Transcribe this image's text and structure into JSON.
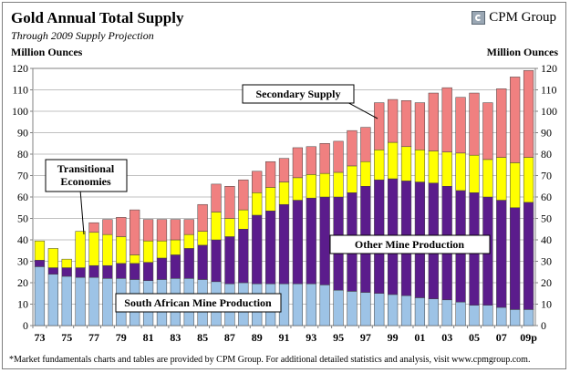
{
  "header": {
    "title": "Gold Annual Total Supply",
    "subtitle": "Through 2009 Supply Projection",
    "brand": "CPM Group",
    "unit_left": "Million Ounces",
    "unit_right": "Million Ounces"
  },
  "footnote": "*Market fundamentals charts and tables are provided by CPM Group. For additional detailed statistics and analysis, visit www.cpmgroup.com.",
  "colors": {
    "south_african": "#9dc3e6",
    "other_mine": "#5b1c8c",
    "transitional": "#ffff00",
    "secondary": "#f08080",
    "grid": "#c0c0c0"
  },
  "chart_data": {
    "type": "bar",
    "stacked": true,
    "title": "Gold Annual Total Supply",
    "subtitle": "Through 2009 Supply Projection",
    "ylabel": "Million Ounces",
    "ylim": [
      0,
      120
    ],
    "yticks": [
      0,
      10,
      20,
      30,
      40,
      50,
      60,
      70,
      80,
      90,
      100,
      110,
      120
    ],
    "grid": true,
    "categories": [
      "1973",
      "1974",
      "1975",
      "1976",
      "1977",
      "1978",
      "1979",
      "1980",
      "1981",
      "1982",
      "1983",
      "1984",
      "1985",
      "1986",
      "1987",
      "1988",
      "1989",
      "1990",
      "1991",
      "1992",
      "1993",
      "1994",
      "1995",
      "1996",
      "1997",
      "1998",
      "1999",
      "2000",
      "2001",
      "2002",
      "2003",
      "2004",
      "2005",
      "2006",
      "2007",
      "2008",
      "2009p"
    ],
    "xtick_labels": [
      "73",
      "",
      "75",
      "",
      "77",
      "",
      "79",
      "",
      "81",
      "",
      "83",
      "",
      "85",
      "",
      "87",
      "",
      "89",
      "",
      "91",
      "",
      "93",
      "",
      "95",
      "",
      "97",
      "",
      "99",
      "",
      "01",
      "",
      "03",
      "",
      "05",
      "",
      "07",
      "",
      "09p"
    ],
    "series": [
      {
        "name": "South African Mine Production",
        "color": "#9dc3e6",
        "values": [
          27.5,
          24,
          23,
          22.5,
          22.5,
          22,
          22,
          21.5,
          21,
          21.5,
          22,
          22,
          21.5,
          20.5,
          19.5,
          20,
          19.5,
          19.5,
          19.5,
          19.5,
          19.5,
          19,
          16.5,
          16,
          15.5,
          15,
          14.5,
          14,
          13,
          12.5,
          12,
          11,
          9.5,
          9.5,
          8.5,
          7.5,
          7.5
        ]
      },
      {
        "name": "Other Mine Production",
        "color": "#5b1c8c",
        "values": [
          3,
          3,
          4,
          4.5,
          5.5,
          6,
          7,
          7.5,
          8.5,
          10,
          11,
          14,
          16,
          19.5,
          22,
          25,
          32,
          34,
          37,
          39,
          40,
          41,
          43.5,
          46,
          49.5,
          53,
          54,
          53.5,
          54,
          54,
          53,
          52,
          52.5,
          50.5,
          50,
          47.5,
          50
        ]
      },
      {
        "name": "Transitional Economies",
        "color": "#ffff00",
        "values": [
          9,
          9,
          4,
          17,
          15.5,
          14.5,
          12.5,
          4,
          10,
          8,
          7,
          6.5,
          6.5,
          13,
          8.5,
          9,
          10.5,
          11,
          10.5,
          10.5,
          11,
          11,
          11.5,
          12.5,
          11.5,
          14,
          17,
          16,
          15,
          15,
          16,
          17.5,
          17.5,
          17.5,
          20,
          21,
          21
        ]
      },
      {
        "name": "Secondary Supply",
        "color": "#f08080",
        "values": [
          0,
          0,
          0,
          0,
          4.5,
          7,
          9,
          21,
          10,
          10,
          9.5,
          7,
          12.5,
          13,
          15,
          14,
          10,
          12,
          11,
          14,
          13,
          14,
          14.5,
          16.5,
          16,
          22,
          20,
          21.5,
          22,
          27,
          30,
          26,
          29,
          26.5,
          32,
          40,
          40.5
        ]
      }
    ],
    "annotations": [
      {
        "text": "Secondary Supply",
        "series": "Secondary Supply"
      },
      {
        "text": "Transitional Economies",
        "lines": [
          "Transitional",
          "Economies"
        ],
        "series": "Transitional Economies"
      },
      {
        "text": "Other Mine Production",
        "series": "Other Mine Production"
      },
      {
        "text": "South African Mine Production",
        "series": "South African Mine Production"
      }
    ]
  }
}
